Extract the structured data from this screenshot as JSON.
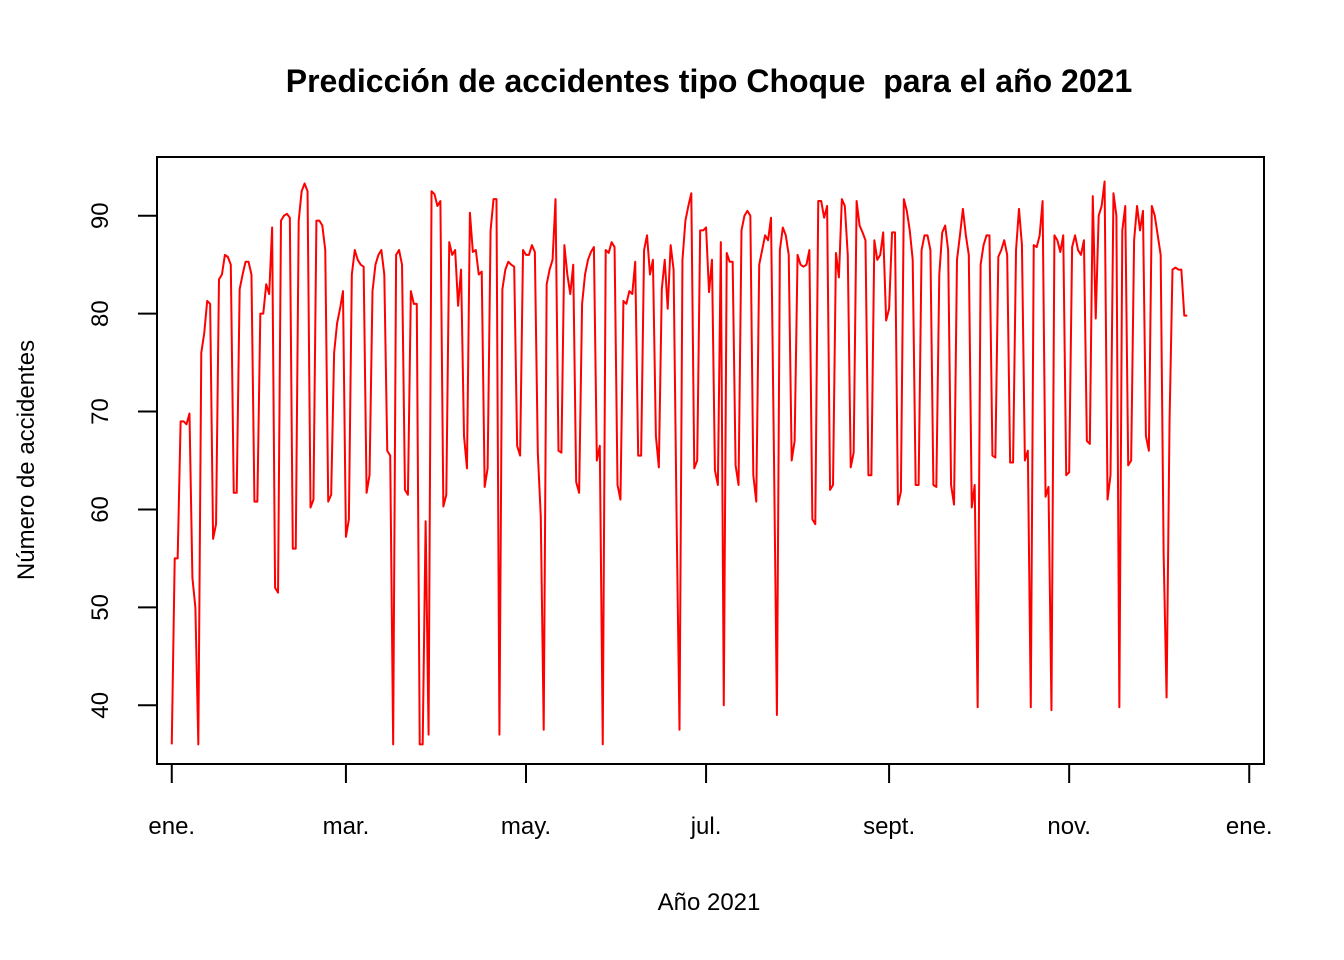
{
  "chart_data": {
    "type": "line",
    "title": "Predicción de accidentes tipo Choque  para el año 2021",
    "xlabel": "Año 2021",
    "ylabel": "Número de accidentes",
    "ylim": [
      34,
      96
    ],
    "xlim": [
      "2020-12-27",
      "2022-01-06"
    ],
    "yticks": [
      40,
      50,
      60,
      70,
      80,
      90
    ],
    "xticks": [
      {
        "date": "2021-01-01",
        "label": "ene."
      },
      {
        "date": "2021-03-01",
        "label": "mar."
      },
      {
        "date": "2021-05-01",
        "label": "may."
      },
      {
        "date": "2021-07-01",
        "label": "jul."
      },
      {
        "date": "2021-09-01",
        "label": "sept."
      },
      {
        "date": "2021-11-01",
        "label": "nov."
      },
      {
        "date": "2022-01-01",
        "label": "ene."
      }
    ],
    "grid": false,
    "legend": "none",
    "line_color": "#ff0000",
    "series": [
      {
        "x_start": "2021-01-01",
        "x_step": "1 day",
        "values": [
          36,
          55,
          55,
          69,
          69,
          68.7,
          69.8,
          53,
          50,
          36,
          76,
          78,
          81.3,
          81,
          57,
          58.5,
          83.5,
          84,
          86,
          85.8,
          85,
          61.7,
          61.7,
          82.5,
          84,
          85.3,
          85.3,
          84,
          60.8,
          60.8,
          80,
          80,
          83,
          82,
          88.8,
          52,
          51.5,
          89.5,
          90,
          90.2,
          89.8,
          56,
          56,
          89.5,
          92.5,
          93.3,
          92.5,
          60.2,
          61,
          89.5,
          89.5,
          89,
          86.5,
          60.8,
          61.5,
          76,
          79,
          80.5,
          82.3,
          57.2,
          59,
          84,
          86.5,
          85.5,
          85,
          84.8,
          61.7,
          63.5,
          82.3,
          85,
          86,
          86.5,
          84,
          66,
          65.5,
          36,
          86,
          86.5,
          85,
          62,
          61.5,
          82.3,
          81,
          81,
          36,
          36,
          58.8,
          37,
          92.5,
          92.2,
          91,
          91.5,
          60.3,
          61.5,
          87.3,
          86,
          86.5,
          80.8,
          84.5,
          67.5,
          64.2,
          90.3,
          86.3,
          86.5,
          84,
          84.3,
          62.3,
          64.2,
          88.5,
          91.7,
          91.7,
          37,
          82.5,
          84.5,
          85.3,
          85,
          84.8,
          66.5,
          65.5,
          86.5,
          86,
          86,
          87,
          86.3,
          65.8,
          59.3,
          37.5,
          83,
          84.5,
          85.5,
          91.7,
          66,
          65.8,
          87,
          84,
          82,
          85,
          62.8,
          61.7,
          81,
          84,
          85.5,
          86.3,
          86.8,
          65,
          66.5,
          36,
          86.5,
          86.2,
          87.3,
          86.8,
          62.5,
          61,
          81.3,
          81,
          82.3,
          82,
          85.3,
          65.5,
          65.5,
          86.5,
          88,
          84,
          85.5,
          67.5,
          64.3,
          82.5,
          85.5,
          80.5,
          87,
          84.5,
          59.5,
          37.5,
          85.5,
          89.5,
          91,
          92.3,
          64.2,
          65,
          88.5,
          88.5,
          88.8,
          82.2,
          85.5,
          64,
          62.5,
          87.3,
          40,
          86.2,
          85.3,
          85.3,
          64.5,
          62.5,
          88.5,
          90,
          90.5,
          90,
          63.5,
          60.8,
          85,
          86.5,
          88,
          87.5,
          89.8,
          65.5,
          39,
          86.5,
          88.8,
          88,
          86,
          65,
          67,
          86,
          85,
          84.8,
          85,
          86.5,
          59,
          58.5,
          91.5,
          91.5,
          89.8,
          91,
          62,
          62.5,
          86.2,
          83.7,
          91.7,
          91,
          86,
          64.3,
          65.8,
          91.5,
          89,
          88.3,
          87.5,
          63.5,
          63.5,
          87.5,
          85.5,
          86,
          88.3,
          79.3,
          80.5,
          88.3,
          88.3,
          60.5,
          61.8,
          91.7,
          90.5,
          88.5,
          85.5,
          62.5,
          62.5,
          86.5,
          88,
          88,
          86.5,
          62.5,
          62.3,
          84,
          88.3,
          89,
          86.5,
          62.5,
          60.5,
          85.5,
          88,
          90.7,
          88,
          86,
          60.2,
          62.5,
          39.8,
          85,
          87,
          88,
          88,
          65.5,
          65.3,
          85.8,
          86.5,
          87.5,
          86,
          64.8,
          64.8,
          86.5,
          90.7,
          87,
          65,
          66,
          39.8,
          87,
          86.8,
          88,
          91.5,
          61.3,
          62.3,
          39.5,
          88,
          87.5,
          86.3,
          88,
          63.5,
          63.8,
          86.8,
          88,
          86.5,
          86,
          87.5,
          67,
          66.7,
          92,
          79.5,
          90,
          91,
          93.5,
          61,
          63.5,
          92.3,
          90,
          39.8,
          88.5,
          91,
          64.5,
          65,
          87.5,
          91,
          88.5,
          90.5,
          67.5,
          66,
          91,
          90,
          88,
          86,
          55.5,
          40.8,
          69,
          84.5,
          84.7,
          84.5,
          84.5,
          79.8,
          79.8
        ]
      }
    ]
  }
}
